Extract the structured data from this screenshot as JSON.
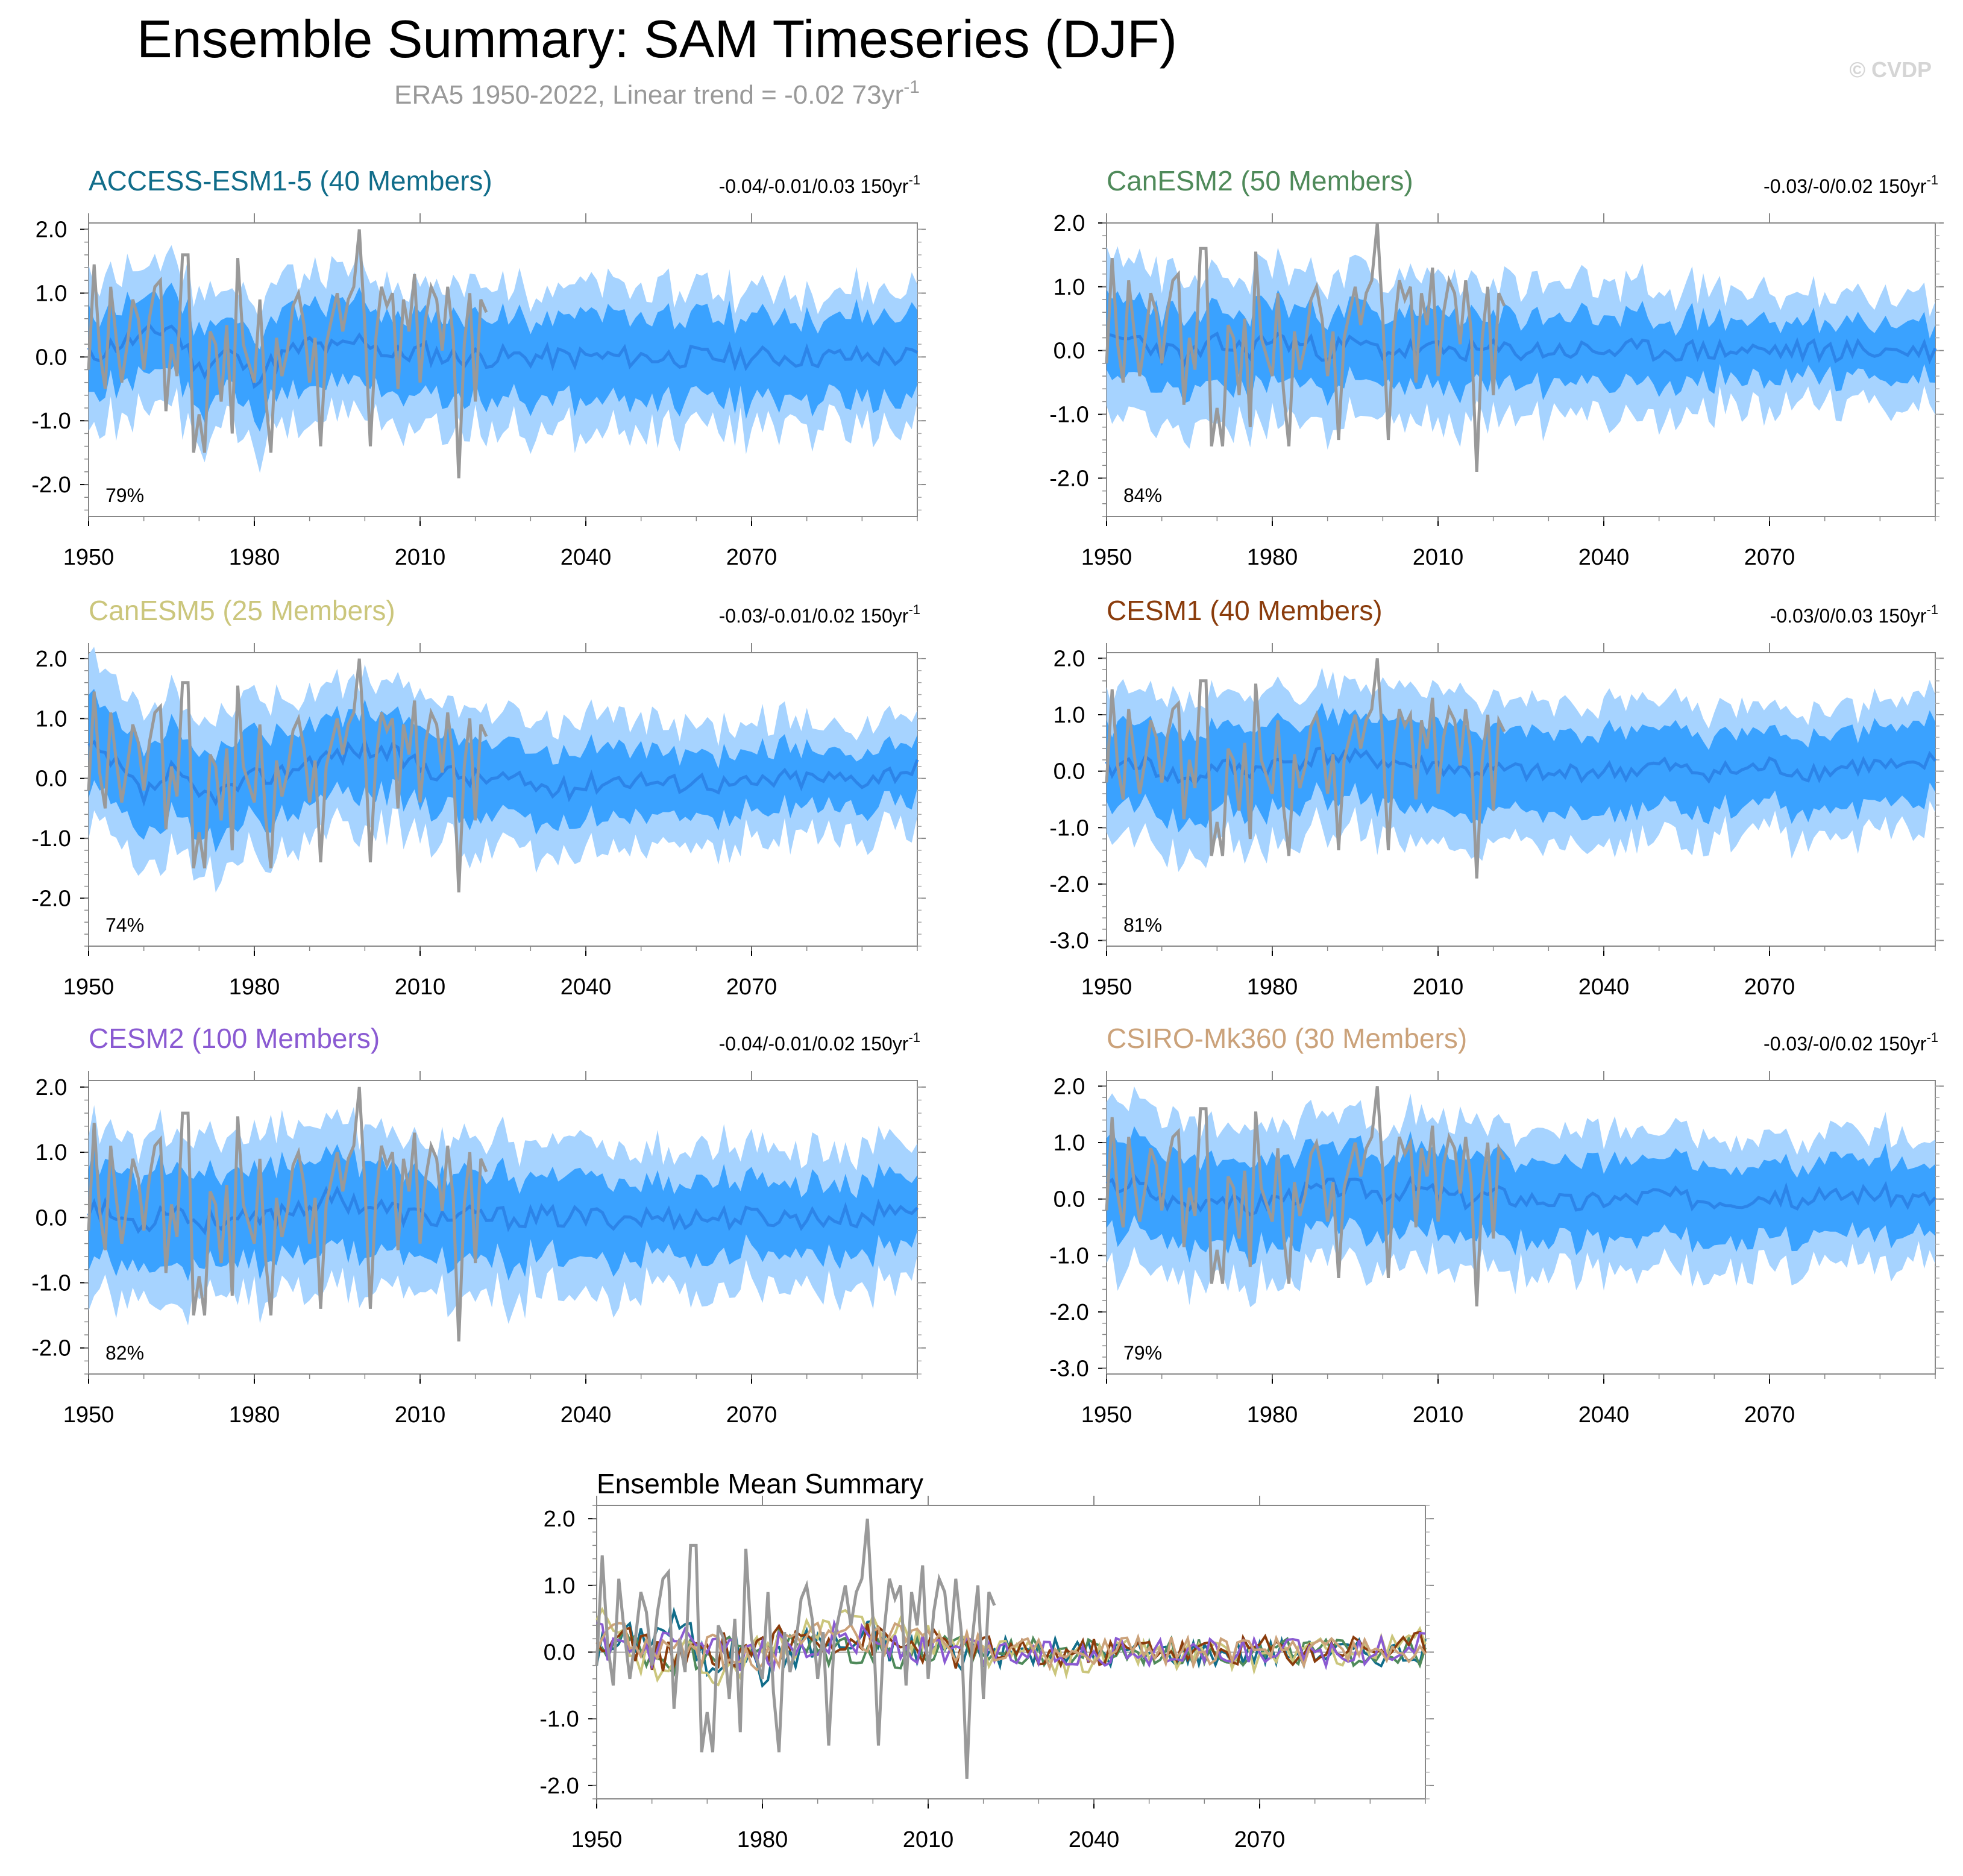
{
  "title": "Ensemble Summary: SAM Timeseries (DJF)",
  "subtitle": {
    "text": "ERA5 1950-2022, Linear trend = -0.02 73yr",
    "sup": "-1"
  },
  "credit": "© CVDP",
  "colors": {
    "outer_band": "#a6d3ff",
    "inner_band": "#3aa2ff",
    "ensemble_mean": "#2c84e8",
    "observations": "#999999",
    "zero_line": "#7a7a7a",
    "frame": "#888888"
  },
  "chart_data": [
    {
      "id": "access-esm1-5",
      "type": "line",
      "title": "ACCESS-ESM1-5 (40 Members)",
      "title_color": "#116d8a",
      "trend": {
        "text": "-0.04/-0.01/0.03 150yr",
        "sup": "-1"
      },
      "percent": "79%",
      "xlim": [
        1950,
        2100
      ],
      "ylim": [
        -2.5,
        2.1
      ],
      "yticks": [
        2.0,
        1.0,
        0.0,
        -1.0,
        -2.0
      ],
      "ytick_labels": [
        "2.0",
        "1.0",
        "0.0",
        "-1.0",
        "-2.0"
      ],
      "xticks": [
        1950,
        1980,
        2010,
        2040,
        2070
      ],
      "ens_mean_start": 0.0,
      "ens_mean_end": 0.0,
      "ens_mean_approx": [
        0.0,
        0.2,
        0.3,
        0.5,
        -0.2,
        0.1,
        -0.3,
        0.0,
        0.2,
        0.1,
        0.3,
        0.0,
        0.1,
        0.0,
        0.0,
        0.0,
        0.0,
        0.0,
        0.0,
        0.0,
        0.0,
        0.0,
        0.0,
        0.0,
        0.0,
        0.0,
        0.0,
        0.0,
        0.0,
        0.0,
        0.0
      ],
      "inner_half": 0.55,
      "outer_half": 1.05,
      "inner_half_end": 0.6,
      "outer_half_end": 0.95,
      "noise_seed": 11
    },
    {
      "id": "canesm2",
      "type": "line",
      "title": "CanESM2 (50 Members)",
      "title_color": "#4f8a5a",
      "trend": {
        "text": "-0.03/-0/0.02 150yr",
        "sup": "-1"
      },
      "percent": "84%",
      "xlim": [
        1950,
        2100
      ],
      "ylim": [
        -2.6,
        2.0
      ],
      "yticks": [
        2.0,
        1.0,
        0.0,
        -1.0,
        -2.0
      ],
      "ytick_labels": [
        "2.0",
        "1.0",
        "0.0",
        "-1.0",
        "-2.0"
      ],
      "xticks": [
        1950,
        1980,
        2010,
        2040,
        2070
      ],
      "ens_mean_approx": [
        0.1,
        0.2,
        0.0,
        -0.1,
        0.1,
        0.0,
        0.2,
        0.1,
        0.0,
        0.1,
        0.0,
        0.0,
        0.0,
        0.0,
        0.0,
        0.0,
        0.0,
        0.0,
        0.0,
        0.0,
        0.0,
        0.0,
        0.0,
        0.0,
        0.0,
        0.0,
        0.0,
        0.0,
        0.0,
        0.0,
        0.0
      ],
      "inner_half": 0.6,
      "outer_half": 1.2,
      "inner_half_end": 0.35,
      "outer_half_end": 0.7,
      "noise_seed": 23
    },
    {
      "id": "canesm5",
      "type": "line",
      "title": "CanESM5 (25 Members)",
      "title_color": "#cbc67c",
      "trend": {
        "text": "-0.03/-0.01/0.02 150yr",
        "sup": "-1"
      },
      "percent": "74%",
      "xlim": [
        1950,
        2100
      ],
      "ylim": [
        -2.8,
        2.1
      ],
      "yticks": [
        2.0,
        1.0,
        0.0,
        -1.0,
        -2.0
      ],
      "ytick_labels": [
        "2.0",
        "1.0",
        "0.0",
        "-1.0",
        "-2.0"
      ],
      "xticks": [
        1950,
        1980,
        2010,
        2040,
        2070
      ],
      "ens_mean_approx": [
        0.5,
        0.2,
        -0.3,
        0.1,
        -0.3,
        -0.2,
        0.0,
        0.1,
        0.3,
        0.4,
        0.5,
        0.4,
        0.2,
        0.1,
        0.0,
        0.0,
        -0.1,
        -0.2,
        -0.1,
        0.0,
        0.0,
        -0.1,
        0.0,
        -0.1,
        -0.1,
        0.0,
        0.0,
        0.0,
        0.0,
        0.1,
        0.2
      ],
      "inner_half": 0.7,
      "outer_half": 1.25,
      "inner_half_end": 0.4,
      "outer_half_end": 0.8,
      "noise_seed": 37
    },
    {
      "id": "cesm1",
      "type": "line",
      "title": "CESM1 (40 Members)",
      "title_color": "#8a3c0c",
      "trend": {
        "text": "-0.03/0/0.03 150yr",
        "sup": "-1"
      },
      "percent": "81%",
      "xlim": [
        1950,
        2100
      ],
      "ylim": [
        -3.1,
        2.1
      ],
      "yticks": [
        2.0,
        1.0,
        0.0,
        -1.0,
        -2.0,
        -3.0
      ],
      "ytick_labels": [
        "2.0",
        "1.0",
        "0.0",
        "-1.0",
        "-2.0",
        "-3.0"
      ],
      "xticks": [
        1950,
        1980,
        2010,
        2040,
        2070
      ],
      "ens_mean_approx": [
        0.0,
        0.2,
        0.0,
        -0.2,
        0.1,
        0.0,
        0.1,
        0.2,
        0.3,
        0.2,
        0.2,
        0.1,
        0.1,
        0.0,
        0.0,
        0.0,
        -0.1,
        0.0,
        0.0,
        0.0,
        0.1,
        0.0,
        0.0,
        0.0,
        0.1,
        0.0,
        0.0,
        0.1,
        0.1,
        0.0,
        0.2
      ],
      "inner_half": 0.7,
      "outer_half": 1.25,
      "inner_half_end": 0.6,
      "outer_half_end": 1.0,
      "noise_seed": 41
    },
    {
      "id": "cesm2",
      "type": "line",
      "title": "CESM2 (100 Members)",
      "title_color": "#8a5ad2",
      "trend": {
        "text": "-0.04/-0.01/0.02 150yr",
        "sup": "-1"
      },
      "percent": "82%",
      "xlim": [
        1950,
        2100
      ],
      "ylim": [
        -2.4,
        2.1
      ],
      "yticks": [
        2.0,
        1.0,
        0.0,
        -1.0,
        -2.0
      ],
      "ytick_labels": [
        "2.0",
        "1.0",
        "0.0",
        "-1.0",
        "-2.0"
      ],
      "xticks": [
        1950,
        1980,
        2010,
        2040,
        2070
      ],
      "ens_mean_approx": [
        0.2,
        0.0,
        -0.1,
        0.2,
        -0.1,
        0.0,
        -0.1,
        0.1,
        0.2,
        0.3,
        0.2,
        0.1,
        0.0,
        0.0,
        0.0,
        0.0,
        0.0,
        0.0,
        0.0,
        0.0,
        0.0,
        0.0,
        0.0,
        0.0,
        0.0,
        0.0,
        0.0,
        0.0,
        0.0,
        0.1,
        0.2
      ],
      "inner_half": 0.7,
      "outer_half": 1.2,
      "inner_half_end": 0.45,
      "outer_half_end": 0.9,
      "noise_seed": 53
    },
    {
      "id": "csiro-mk360",
      "type": "line",
      "title": "CSIRO-Mk360 (30 Members)",
      "title_color": "#cba27a",
      "trend": {
        "text": "-0.03/-0/0.02 150yr",
        "sup": "-1"
      },
      "percent": "79%",
      "xlim": [
        1950,
        2100
      ],
      "ylim": [
        -3.1,
        2.1
      ],
      "yticks": [
        2.0,
        1.0,
        0.0,
        -1.0,
        -2.0,
        -3.0
      ],
      "ytick_labels": [
        "2.0",
        "1.0",
        "0.0",
        "-1.0",
        "-2.0",
        "-3.0"
      ],
      "xticks": [
        1950,
        1980,
        2010,
        2040,
        2070
      ],
      "ens_mean_approx": [
        0.2,
        0.3,
        0.0,
        -0.1,
        0.1,
        -0.2,
        0.0,
        0.1,
        0.2,
        0.2,
        0.1,
        0.2,
        0.1,
        0.0,
        0.1,
        0.0,
        0.0,
        -0.1,
        0.0,
        0.0,
        0.1,
        0.0,
        0.0,
        0.0,
        0.1,
        0.0,
        0.0,
        0.1,
        0.1,
        0.0,
        0.0
      ],
      "inner_half": 0.75,
      "outer_half": 1.35,
      "inner_half_end": 0.55,
      "outer_half_end": 0.95,
      "noise_seed": 67
    },
    {
      "id": "ensemble-mean-summary",
      "type": "line",
      "title": "Ensemble Mean Summary",
      "title_color": "#000000",
      "xlim": [
        1950,
        2100
      ],
      "ylim": [
        -2.2,
        2.2
      ],
      "yticks": [
        2.0,
        1.0,
        0.0,
        -1.0,
        -2.0
      ],
      "ytick_labels": [
        "2.0",
        "1.0",
        "0.0",
        "-1.0",
        "-2.0"
      ],
      "xticks": [
        1950,
        1980,
        2010,
        2040,
        2070
      ],
      "series_colors": [
        "#116d8a",
        "#4f8a5a",
        "#cbc67c",
        "#8a3c0c",
        "#8a5ad2",
        "#cba27a"
      ]
    }
  ],
  "obs_era5": {
    "name": "ERA5",
    "years": [
      1950,
      2022
    ],
    "values": [
      -0.2,
      1.45,
      0.1,
      -0.5,
      1.1,
      0.3,
      -0.4,
      0.2,
      0.9,
      0.6,
      -0.2,
      0.6,
      1.1,
      1.2,
      -0.85,
      0.2,
      -0.3,
      1.6,
      1.6,
      -1.5,
      -0.9,
      -1.5,
      0.4,
      0.2,
      -0.7,
      0.5,
      -1.2,
      1.55,
      0.2,
      -0.1,
      -0.4,
      0.9,
      -0.6,
      -1.5,
      0.3,
      -0.3,
      0.1,
      0.8,
      1.0,
      0.5,
      -0.4,
      0.3,
      -1.4,
      0.2,
      0.6,
      1.0,
      0.4,
      0.9,
      1.1,
      2.0,
      0.5,
      -1.4,
      0.3,
      1.1,
      0.8,
      1.0,
      -0.5,
      0.9,
      0.4,
      1.3,
      -0.4,
      0.6,
      1.1,
      0.9,
      0.1,
      1.1,
      0.3,
      -1.9,
      0.2,
      1.0,
      -0.7,
      0.9,
      0.7
    ]
  }
}
